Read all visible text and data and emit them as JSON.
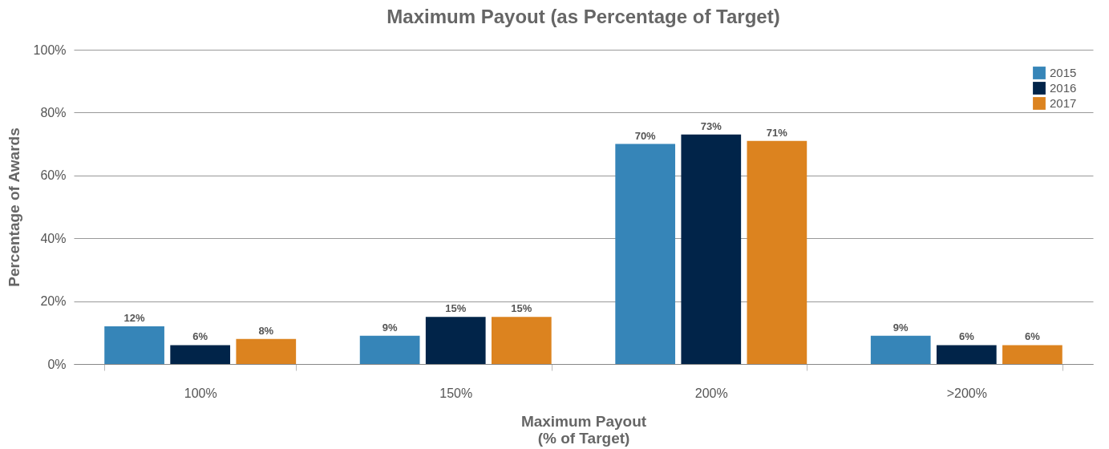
{
  "chart_data": {
    "type": "bar",
    "title": "Maximum Payout (as Percentage of Target)",
    "xlabel": "Maximum Payout\n(% of Target)",
    "ylabel": "Percentage of Awards",
    "categories": [
      "100%",
      "150%",
      "200%",
      ">200%"
    ],
    "series": [
      {
        "name": "2015",
        "color": "#3685b8",
        "values": [
          12,
          9,
          70,
          9
        ],
        "value_labels": [
          "12%",
          "9%",
          "70%",
          "9%"
        ]
      },
      {
        "name": "2016",
        "color": "#012449",
        "values": [
          6,
          15,
          73,
          6
        ],
        "value_labels": [
          "6%",
          "15%",
          "73%",
          "6%"
        ]
      },
      {
        "name": "2017",
        "color": "#dc831f",
        "values": [
          8,
          15,
          71,
          6
        ],
        "value_labels": [
          "8%",
          "15%",
          "71%",
          "6%"
        ]
      }
    ],
    "ylim": [
      0,
      100
    ],
    "yticks": [
      {
        "value": 0,
        "label": "0%"
      },
      {
        "value": 20,
        "label": "20%"
      },
      {
        "value": 40,
        "label": "40%"
      },
      {
        "value": 60,
        "label": "60%"
      },
      {
        "value": 80,
        "label": "80%"
      },
      {
        "value": 100,
        "label": "100%"
      }
    ],
    "grid": "y",
    "legend": "top right"
  }
}
